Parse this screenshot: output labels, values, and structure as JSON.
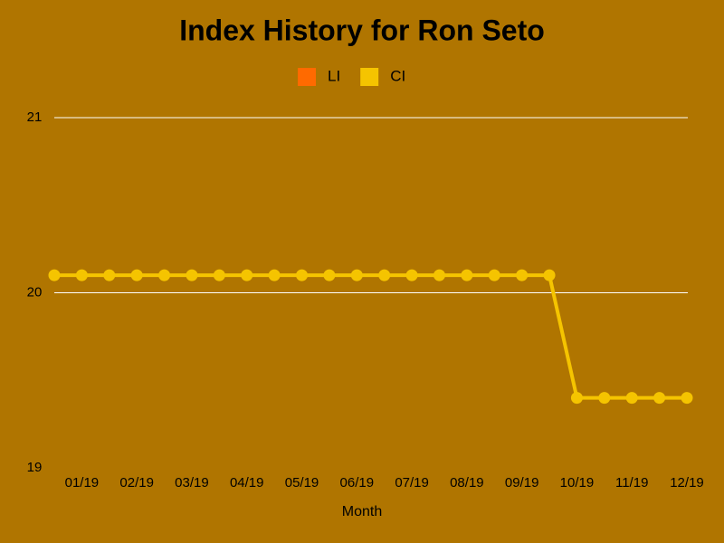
{
  "chart_data": {
    "type": "line",
    "title": "Index History for Ron Seto",
    "x_label": "Month",
    "categories": [
      null,
      "01/19",
      null,
      "02/19",
      null,
      "03/19",
      null,
      "04/19",
      null,
      "05/19",
      null,
      "06/19",
      null,
      "07/19",
      null,
      "08/19",
      null,
      "09/19",
      null,
      "10/19",
      null,
      "11/19",
      null,
      "12/19"
    ],
    "series": [
      {
        "name": "LI",
        "color": "#ff6a00",
        "values": [
          null,
          null,
          null,
          null,
          null,
          null,
          null,
          null,
          null,
          null,
          null,
          null,
          null,
          null,
          null,
          null,
          null,
          null,
          null,
          null,
          null,
          null,
          null,
          null
        ]
      },
      {
        "name": "CI",
        "color": "#f5c400",
        "values": [
          20.1,
          20.1,
          20.1,
          20.1,
          20.1,
          20.1,
          20.1,
          20.1,
          20.1,
          20.1,
          20.1,
          20.1,
          20.1,
          20.1,
          20.1,
          20.1,
          20.1,
          20.1,
          20.1,
          19.4,
          19.4,
          19.4,
          19.4,
          19.4
        ]
      }
    ],
    "ylim": [
      19,
      21
    ],
    "yticks": [
      19,
      20,
      21
    ],
    "grid": true
  }
}
